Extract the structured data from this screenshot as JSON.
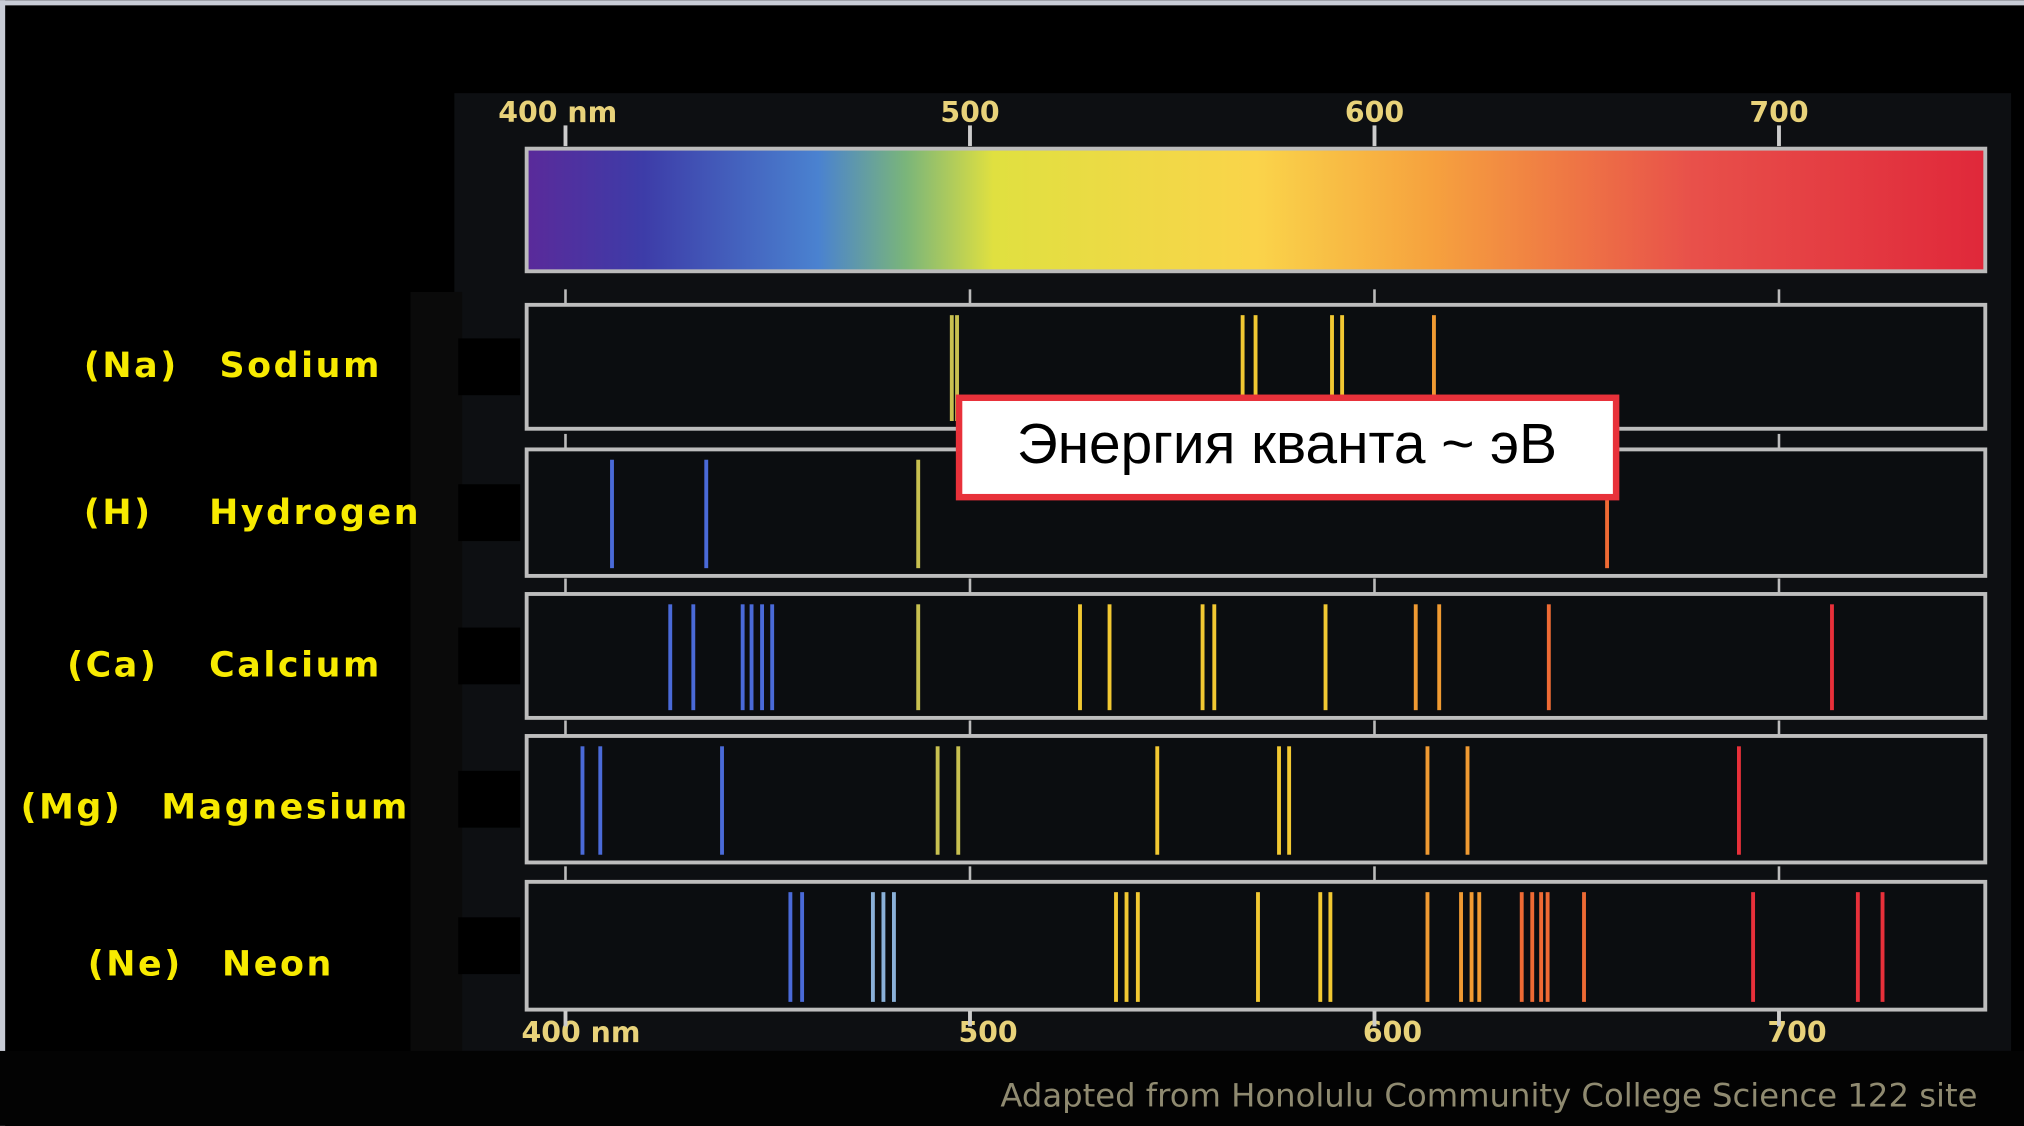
{
  "axis": {
    "xlim": [
      390.4,
      751
    ],
    "ticks": [
      {
        "value": 400,
        "label": "400 nm"
      },
      500,
      600,
      700
    ]
  },
  "elements": [
    {
      "symbol": "(Na)",
      "name": "Sodium",
      "lines": [
        495.5,
        496.8,
        567.4,
        570.6,
        589.5,
        592,
        614.7
      ]
    },
    {
      "symbol": "(H)",
      "name": "Hydrogen",
      "lines": [
        411.5,
        434.8,
        487.2,
        657.5
      ]
    },
    {
      "symbol": "(Ca)",
      "name": "Calcium",
      "lines": [
        425.9,
        431.6,
        443.8,
        446,
        448.6,
        451.1,
        487.2,
        527.2,
        534.5,
        557.5,
        560.4,
        587.9,
        610.2,
        616,
        643.1,
        713.1
      ]
    },
    {
      "symbol": "(Mg)",
      "name": "Magnesium",
      "lines": [
        404.2,
        408.6,
        438.7,
        492,
        497.1,
        546.3,
        576.4,
        578.9,
        613.1,
        623,
        690.1
      ]
    },
    {
      "symbol": "(Ne)",
      "name": "Neon",
      "lines": [
        455.6,
        458.5,
        476,
        478.6,
        481.2,
        536.1,
        538.7,
        541.5,
        571.2,
        586.6,
        589.1,
        613.1,
        621.4,
        624,
        625.9,
        636.4,
        639,
        641.2,
        642.8,
        651.8,
        693.6,
        719.5,
        725.6
      ]
    }
  ],
  "callout": "Энергия кванта ~ эВ",
  "credit": "Adapted from Honolulu Community College Science 122 site"
}
